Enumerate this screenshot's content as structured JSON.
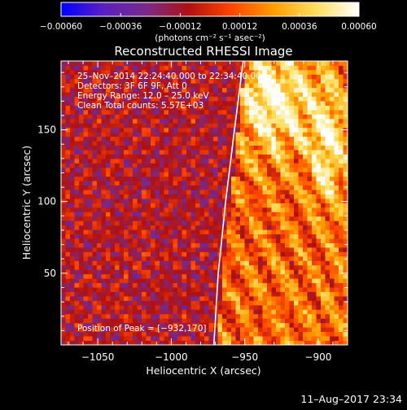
{
  "chart_data": {
    "type": "heatmap",
    "title": "Reconstructed RHESSI Image",
    "xlabel": "Heliocentric X (arcsec)",
    "ylabel": "Heliocentric Y (arcsec)",
    "xlim": [
      -1075,
      -880
    ],
    "ylim": [
      0,
      198
    ],
    "x_ticks": [
      -1050,
      -1000,
      -950,
      -900
    ],
    "x_tick_labels": [
      "−1050",
      "−1000",
      "−950",
      "−900"
    ],
    "y_ticks": [
      50,
      100,
      150
    ],
    "y_tick_labels": [
      "50",
      "100",
      "150"
    ],
    "colorbar": {
      "min": -0.0006,
      "max": 0.0006,
      "ticks": [
        -0.0006,
        -0.00036,
        -0.00012,
        0.00012,
        0.00036,
        0.0006
      ],
      "tick_labels": [
        "−0.00060",
        "−0.00036",
        "−0.00012",
        "0.00012",
        "0.00036",
        "0.00060"
      ],
      "unit_label": "(photons cm⁻² s⁻¹ asec⁻²)",
      "colors": [
        "#0000ff",
        "#5a20c0",
        "#7a2a8a",
        "#b01010",
        "#ff4400",
        "#ff9d00",
        "#ffe060",
        "#ffffff"
      ]
    },
    "info_lines": [
      "25–Nov–2014 22:24:40.000 to 22:34:40.000",
      "Detectors: 3F 6F 9F, Att 0",
      "Energy Range: 12.0 – 25.0 keV",
      "Clean      Total counts: 5.57E+03"
    ],
    "peak_label": "Position of Peak = [−932,170]",
    "peak": [
      -932,
      170
    ],
    "limb_curve": [
      [
        -971,
        0
      ],
      [
        -968,
        50
      ],
      [
        -963,
        100
      ],
      [
        -957,
        150
      ],
      [
        -951,
        198
      ]
    ]
  },
  "footer": {
    "timestamp": "11–Aug–2017 23:34"
  }
}
